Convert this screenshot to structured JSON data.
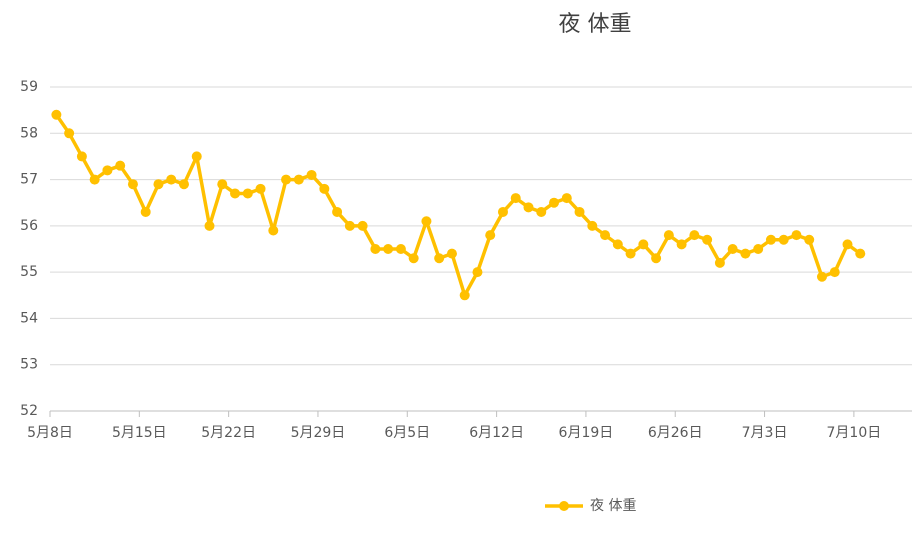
{
  "chart_data": {
    "type": "line",
    "title": "夜 体重",
    "categories": [
      "5月8日",
      null,
      null,
      null,
      null,
      null,
      null,
      "5月15日",
      null,
      null,
      null,
      null,
      null,
      null,
      "5月22日",
      null,
      null,
      null,
      null,
      null,
      null,
      "5月29日",
      null,
      null,
      null,
      null,
      null,
      null,
      "6月5日",
      null,
      null,
      null,
      null,
      null,
      null,
      "6月12日",
      null,
      null,
      null,
      null,
      null,
      null,
      "6月19日",
      null,
      null,
      null,
      null,
      null,
      null,
      "6月26日",
      null,
      null,
      null,
      null,
      null,
      null,
      "7月3日",
      null,
      null,
      null,
      null,
      null,
      null,
      "7月10日"
    ],
    "series": [
      {
        "name": "夜 体重",
        "color": "#ffc000",
        "values": [
          58.4,
          58.0,
          57.5,
          57.0,
          57.2,
          57.3,
          56.9,
          56.3,
          56.9,
          57.0,
          56.9,
          57.5,
          56.0,
          56.9,
          56.7,
          56.7,
          56.8,
          55.9,
          57.0,
          57.0,
          57.1,
          56.8,
          56.3,
          56.0,
          56.0,
          55.5,
          55.5,
          55.5,
          55.3,
          56.1,
          55.3,
          55.4,
          54.5,
          55.0,
          55.8,
          56.3,
          56.6,
          56.4,
          56.3,
          56.5,
          56.6,
          56.3,
          56.0,
          55.8,
          55.6,
          55.4,
          55.6,
          55.3,
          55.8,
          55.6,
          55.8,
          55.7,
          55.2,
          55.5,
          55.4,
          55.5,
          55.7,
          55.7,
          55.8,
          55.7,
          54.9,
          55.0,
          55.6,
          55.4
        ]
      }
    ],
    "ylim": [
      52,
      59
    ],
    "yticks": [
      52,
      53,
      54,
      55,
      56,
      57,
      58,
      59
    ],
    "grid": true,
    "legend": "bottom"
  }
}
